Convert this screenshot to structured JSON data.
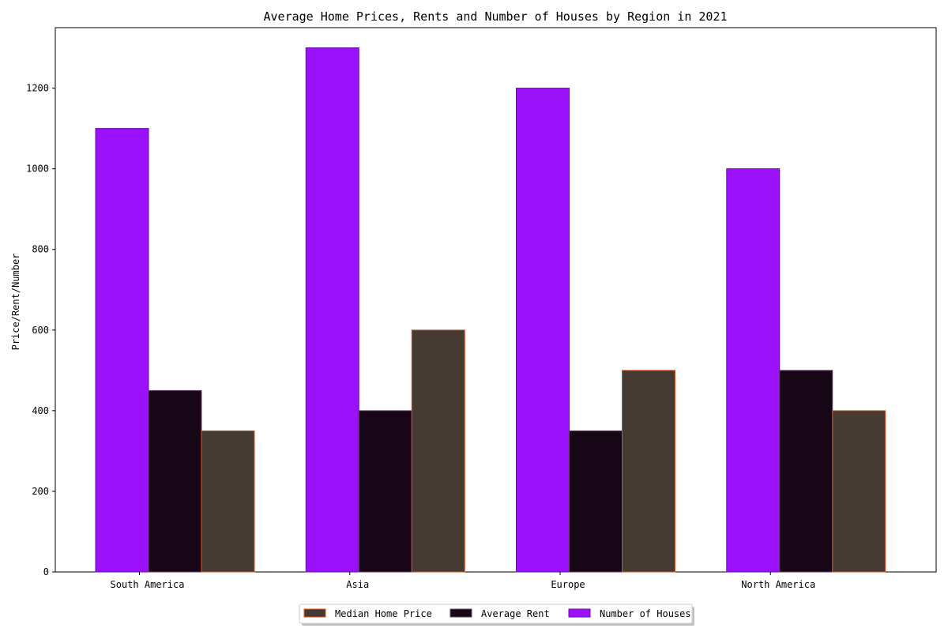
{
  "chart_data": {
    "type": "bar",
    "title": "Average Home Prices, Rents and Number of Houses by Region in 2021",
    "xlabel": "",
    "ylabel": "Price/Rent/Number",
    "ylim": [
      0,
      1350
    ],
    "yticks": [
      0,
      200,
      400,
      600,
      800,
      1000,
      1200
    ],
    "categories": [
      "South America",
      "Asia",
      "Europe",
      "North America"
    ],
    "series": [
      {
        "name": "Number of Houses",
        "values": [
          1100,
          1300,
          1200,
          1000
        ],
        "color": "#9b11fa",
        "edge": "#6a0dad"
      },
      {
        "name": "Average Rent",
        "values": [
          450,
          400,
          350,
          500
        ],
        "color": "#170716",
        "edge": "#6b3a6b"
      },
      {
        "name": "Median Home Price",
        "values": [
          350,
          600,
          500,
          400
        ],
        "color": "#463b32",
        "edge": "#e0501a"
      }
    ],
    "legend": {
      "placement": "bottom-center",
      "order": [
        "Median Home Price",
        "Average Rent",
        "Number of Houses"
      ]
    },
    "grid": false
  }
}
